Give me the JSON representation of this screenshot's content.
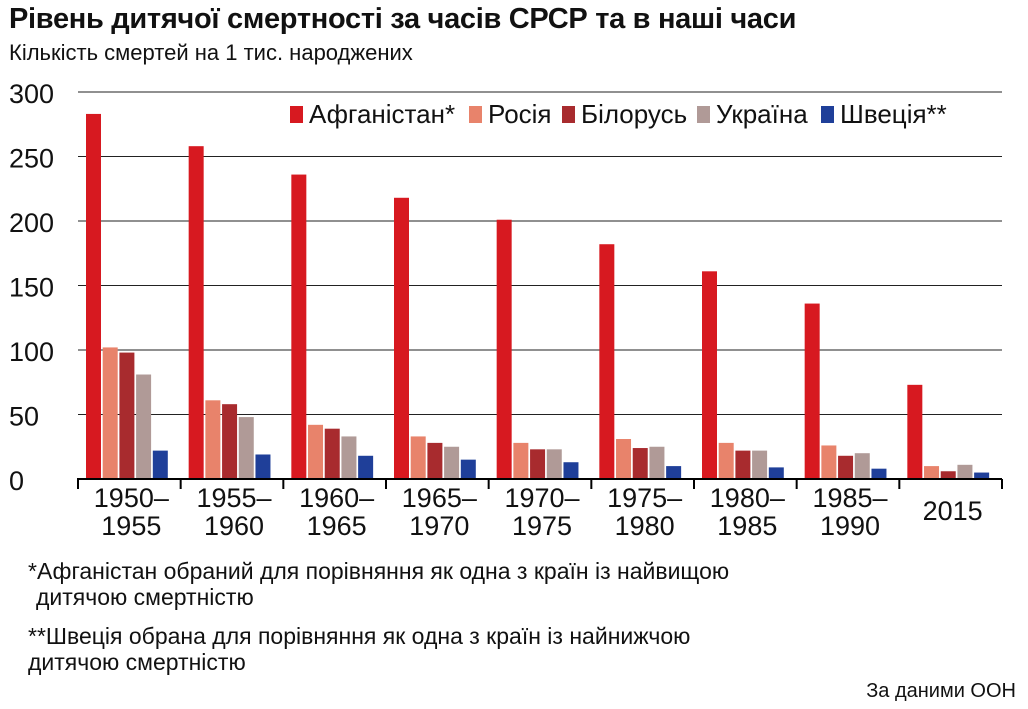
{
  "header": {
    "title": "Рівень дитячої смертності за часів СРСР та в наші часи",
    "subtitle": "Кількість смертей на 1 тис. народжених"
  },
  "chart_data": {
    "type": "bar",
    "title": "Рівень дитячої смертності за часів СРСР та в наші часи",
    "ylabel": "Кількість смертей на 1 тис. народжених",
    "xlabel": "",
    "ylim": [
      0,
      300
    ],
    "yticks": [
      0,
      50,
      100,
      150,
      200,
      250,
      300
    ],
    "grid": true,
    "legend_position": "top-right",
    "categories": [
      [
        "1950–",
        "1955"
      ],
      [
        "1955–",
        "1960"
      ],
      [
        "1960–",
        "1965"
      ],
      [
        "1965–",
        "1970"
      ],
      [
        "1970–",
        "1975"
      ],
      [
        "1975–",
        "1980"
      ],
      [
        "1980–",
        "1985"
      ],
      [
        "1985–",
        "1990"
      ],
      [
        "2015"
      ]
    ],
    "series": [
      {
        "name": "Афганістан*",
        "color": "#d71920",
        "values": [
          283,
          258,
          236,
          218,
          201,
          182,
          161,
          136,
          73
        ]
      },
      {
        "name": "Росія",
        "color": "#e8836b",
        "values": [
          102,
          61,
          42,
          33,
          28,
          31,
          28,
          26,
          10
        ]
      },
      {
        "name": "Білорусь",
        "color": "#a82b2e",
        "values": [
          98,
          58,
          39,
          28,
          23,
          24,
          22,
          18,
          6
        ]
      },
      {
        "name": "Україна",
        "color": "#b09a97",
        "values": [
          81,
          48,
          33,
          25,
          23,
          25,
          22,
          20,
          11
        ]
      },
      {
        "name": "Швеція**",
        "color": "#1f3f99",
        "values": [
          22,
          19,
          18,
          15,
          13,
          10,
          9,
          8,
          5
        ]
      }
    ]
  },
  "notes": {
    "afghanistan_line1": "*Афганістан обраний для порівняння як одна з країн із найвищою",
    "afghanistan_line2": "дитячою смертністю",
    "sweden_line1": "**Швеція обрана для порівняння як одна з країн із найнижчою",
    "sweden_line2": "дитячою смертністю"
  },
  "source": "За даними ООН"
}
